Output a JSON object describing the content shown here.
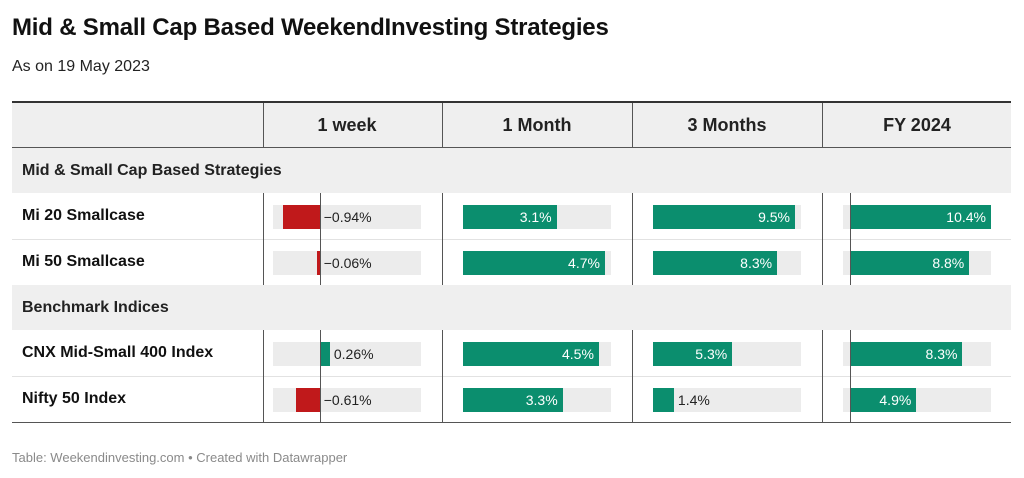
{
  "title": "Mid & Small Cap Based WeekendInvesting Strategies",
  "subtitle": "As on 19 May 2023",
  "footer": "Table: Weekendinvesting.com • Created with Datawrapper",
  "colors": {
    "positive": "#0b8e6e",
    "negative": "#c0191b",
    "track": "#ececec",
    "header_bg": "#efefef"
  },
  "chart_data": {
    "type": "table",
    "columns": [
      "1 week",
      "1 Month",
      "3 Months",
      "FY 2024"
    ],
    "groups": [
      {
        "name": "Mid & Small Cap Based Strategies",
        "rows": [
          {
            "name": "Mi 20 Smallcase",
            "values": [
              -0.94,
              3.1,
              9.5,
              10.4
            ],
            "labels": [
              "−0.94%",
              "3.1%",
              "9.5%",
              "10.4%"
            ]
          },
          {
            "name": "Mi 50 Smallcase",
            "values": [
              -0.06,
              4.7,
              8.3,
              8.8
            ],
            "labels": [
              "−0.06%",
              "4.7%",
              "8.3%",
              "8.8%"
            ]
          }
        ]
      },
      {
        "name": "Benchmark Indices",
        "rows": [
          {
            "name": "CNX Mid-Small 400 Index",
            "values": [
              0.26,
              4.5,
              5.3,
              8.3
            ],
            "labels": [
              "0.26%",
              "4.5%",
              "5.3%",
              "8.3%"
            ]
          },
          {
            "name": "Nifty 50 Index",
            "values": [
              -0.61,
              3.3,
              1.4,
              4.9
            ],
            "labels": [
              "−0.61%",
              "3.3%",
              "1.4%",
              "4.9%"
            ]
          }
        ]
      }
    ],
    "column_ranges": [
      [
        -1.2,
        2.6
      ],
      [
        0,
        4.9
      ],
      [
        0,
        9.9
      ],
      [
        -0.5,
        10.4
      ]
    ]
  }
}
